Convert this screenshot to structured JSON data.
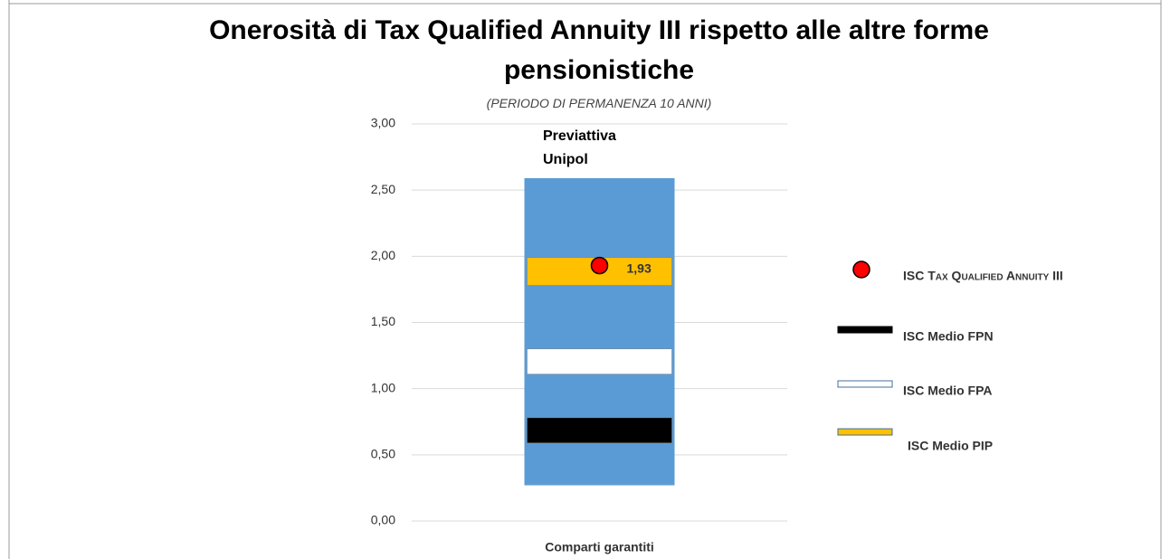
{
  "chart_data": {
    "type": "range",
    "title": "Onerosità di Tax Qualified Annuity III rispetto alle altre forme pensionistiche",
    "subtitle": "(PERIODO DI PERMANENZA 10 ANNI)",
    "categories": [
      "Comparti garantiti"
    ],
    "annotation": "Previattiva Unipol",
    "range": {
      "color": "#5b9bd5",
      "low": [
        0.27
      ],
      "high": [
        2.59
      ]
    },
    "series": [
      {
        "name": "ISC Medio FPN",
        "color": "#000000",
        "low": [
          0.59
        ],
        "high": [
          0.78
        ]
      },
      {
        "name": "ISC Medio FPA",
        "color": "#ffffff",
        "low": [
          1.11
        ],
        "high": [
          1.3
        ]
      },
      {
        "name": "ISC Medio PIP",
        "color": "#ffc000",
        "low": [
          1.78
        ],
        "high": [
          1.99
        ]
      }
    ],
    "points": {
      "name": "ISC Tax Qualified Annuity III",
      "color": "#ff0000",
      "values": [
        1.93
      ],
      "value_labels": [
        "1,93"
      ]
    },
    "ylim": [
      0,
      3
    ],
    "yticks": [
      {
        "value": 0,
        "label": "0,00"
      },
      {
        "value": 0.5,
        "label": "0,50"
      },
      {
        "value": 1,
        "label": "1,00"
      },
      {
        "value": 1.5,
        "label": "1,50"
      },
      {
        "value": 2,
        "label": "2,00"
      },
      {
        "value": 2.5,
        "label": "2,50"
      },
      {
        "value": 3,
        "label": "3,00"
      }
    ],
    "grid": true
  }
}
